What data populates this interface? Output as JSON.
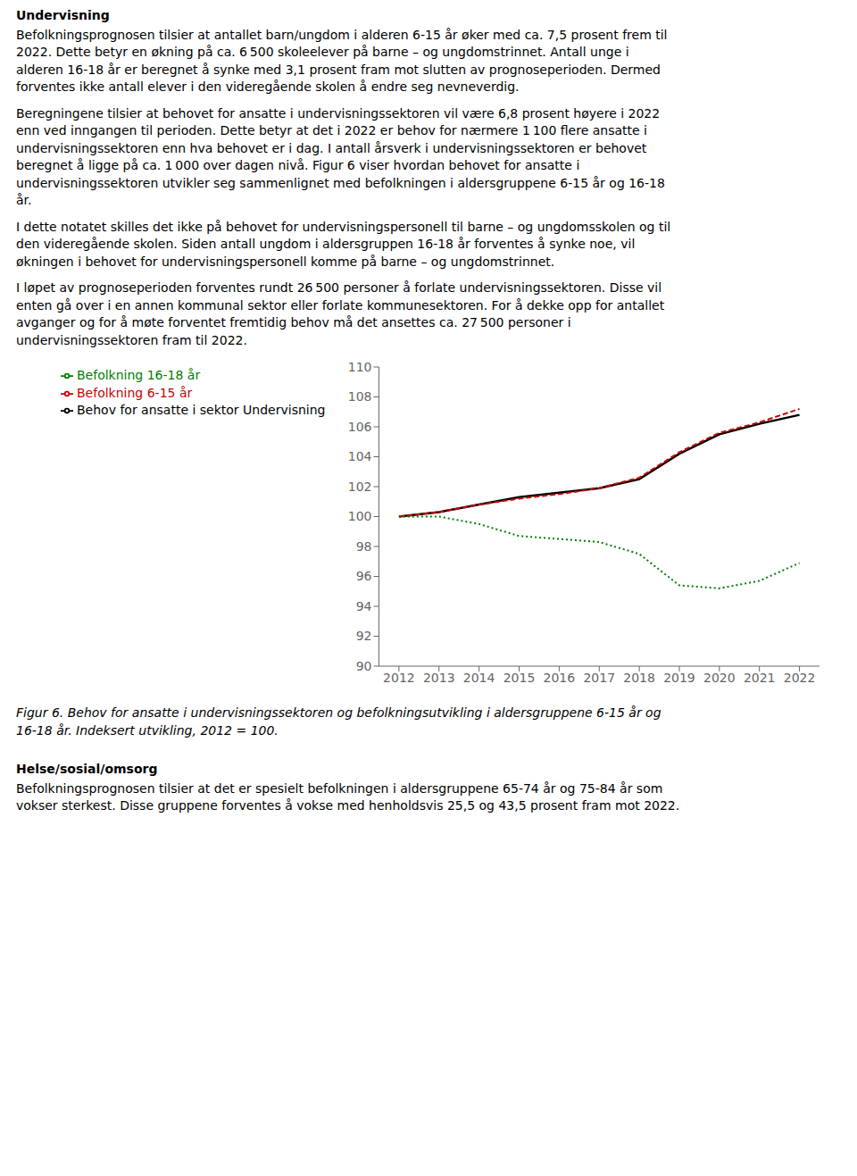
{
  "chart_data": {
    "type": "line",
    "x": [
      2012,
      2013,
      2014,
      2015,
      2016,
      2017,
      2018,
      2019,
      2020,
      2021,
      2022
    ],
    "series": [
      {
        "name": "Behov for ansatte i sektor Undervisning",
        "color": "#000000",
        "line_style": "solid",
        "values": [
          100.0,
          100.3,
          100.8,
          101.3,
          101.6,
          101.9,
          102.5,
          104.2,
          105.5,
          106.2,
          106.8
        ]
      },
      {
        "name": "Befolkning 6-15 år",
        "color": "#cc0000",
        "line_style": "dashed",
        "values": [
          100.0,
          100.3,
          100.8,
          101.2,
          101.5,
          101.9,
          102.6,
          104.3,
          105.6,
          106.3,
          107.2
        ]
      },
      {
        "name": "Befolkning 16-18 år",
        "color": "#008000",
        "line_style": "dotted",
        "values": [
          100.0,
          100.0,
          99.5,
          98.7,
          98.5,
          98.3,
          97.5,
          95.4,
          95.2,
          95.7,
          96.9
        ]
      }
    ],
    "xlim": [
      2011.5,
      2022.5
    ],
    "xticks": [
      2012,
      2013,
      2014,
      2015,
      2016,
      2017,
      2018,
      2019,
      2020,
      2021,
      2022
    ],
    "ylim": [
      90,
      110
    ],
    "yticks": [
      90,
      92,
      94,
      96,
      98,
      100,
      102,
      104,
      106,
      108,
      110
    ],
    "grid": false,
    "legend": "upper left",
    "annotations": [
      [
        "Undervisning"
      ],
      [
        "Befolkningsprognosen tilsier at antallet barn/ungdom i alderen 6-15 år øker med ca. 7,5 prosent frem til",
        "2022. Dette betyr en økning på ca. 6 500 skoleelever på barne – og ungdomstrinnet. Antall unge i",
        "alderen 16-18 år er beregnet å synke med 3,1 prosent fram mot slutten av prognoseperioden. Dermed",
        "forventes ikke antall elever i den videregående skolen å endre seg nevneverdig."
      ],
      [
        "Beregningene tilsier at behovet for ansatte i undervisningssektoren vil være 6,8 prosent høyere i 2022",
        "enn ved inngangen til perioden. Dette betyr at det i 2022 er behov for nærmere 1 100 flere ansatte i",
        "undervisningssektoren enn hva behovet er i dag. I antall årsverk i undervisningssektoren er behovet",
        "beregnet å ligge på ca. 1 000 over dagen nivå. Figur 6 viser hvordan behovet for ansatte i",
        "undervisningssektoren utvikler seg sammenlignet med befolkningen i aldersgruppene 6-15 år og 16-18",
        "år."
      ],
      [
        "I dette notatet skilles det ikke på behovet for undervisningspersonell til barne – og ungdomsskolen og til",
        "den videregående skolen. Siden antall ungdom i aldersgruppen 16-18 år forventes å synke noe, vil",
        "økningen i behovet for undervisningspersonell komme på barne – og ungdomstrinnet."
      ],
      [
        "I løpet av prognoseperioden forventes rundt 26 500 personer å forlate undervisningssektoren. Disse vil",
        "enten gå over i en annen kommunal sektor eller forlate kommunesektoren. For å dekke opp for antallet",
        "avganger og for å møte forventet fremtidig behov må det ansettes ca. 27 500 personer i",
        "undervisningssektoren fram til 2022."
      ],
      [
        "Figur 6. Behov for ansatte i undervisningssektoren og befolkningsutvikling i aldersgruppene 6-15 år og",
        "16-18 år. Indeksert utvikling, 2012 = 100."
      ],
      [
        "Helse/sosial/omsorg"
      ],
      [
        "Befolkningsprognosen tilsier at det er spesielt befolkningen i aldersgruppene 65-74 år og 75-84 år som",
        "vokser sterkest. Disse gruppene forventes å vokse med henholdsvis 25,5 og 43,5 prosent fram mot 2022."
      ]
    ]
  }
}
